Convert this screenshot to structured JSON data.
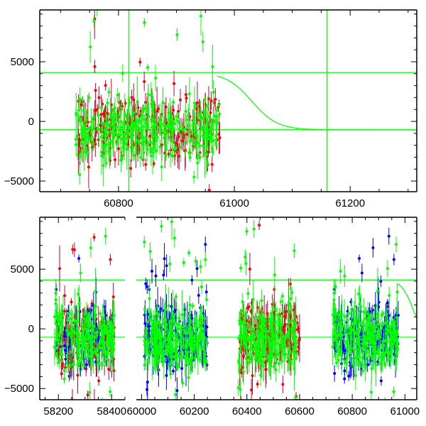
{
  "chart_data": [
    {
      "type": "scatter",
      "title": "",
      "xlabel": "",
      "ylabel": "",
      "xlim": [
        60664,
        61315
      ],
      "ylim": [
        -5893,
        9345
      ],
      "x_ticks": [
        60800,
        61000,
        61200
      ],
      "x_tick_labels": [
        "60800",
        "61000",
        "61200"
      ],
      "y_ticks": [
        -5000,
        0,
        5000
      ],
      "y_tick_labels": [
        "−5000",
        "0",
        "5000"
      ],
      "grid": false,
      "model": {
        "color": "#00ff00",
        "upper": 4100,
        "lower": -700,
        "center": 61030,
        "width": 22,
        "start": 60970
      },
      "vlines": [
        {
          "x": 60818,
          "color": "#00ff00"
        },
        {
          "x": 61160,
          "color": "#00ff00"
        }
      ],
      "clusters": [
        {
          "series": "red",
          "x": [
            60730,
            60975
          ],
          "n": 260
        },
        {
          "series": "green",
          "x": [
            60725,
            60975
          ],
          "n": 320
        }
      ]
    },
    {
      "type": "scatter",
      "title": "",
      "xlabel": "",
      "ylabel": "",
      "broken_x_axis": true,
      "segments": [
        {
          "xlim": [
            58130,
            58450
          ],
          "x_ticks": [
            58200,
            58400
          ],
          "x_tick_labels": [
            "58200",
            "58400"
          ]
        },
        {
          "xlim": [
            59980,
            61045
          ],
          "x_ticks": [
            60000,
            60200,
            60400,
            60600,
            60800,
            61000
          ],
          "x_tick_labels": [
            "60000",
            "60200",
            "60400",
            "60600",
            "60800",
            "61000"
          ]
        }
      ],
      "ylim": [
        -5940,
        9350
      ],
      "y_ticks": [
        -5000,
        0,
        5000
      ],
      "y_tick_labels": [
        "−5000",
        "0",
        "5000"
      ],
      "grid": false,
      "model": {
        "color": "#00ff00",
        "upper": 4100,
        "lower": -700,
        "center": 61030,
        "width": 22,
        "start": 60970
      },
      "clusters": [
        {
          "series": "red",
          "x": [
            58190,
            58410
          ],
          "n": 150
        },
        {
          "series": "blue",
          "x": [
            58190,
            58410
          ],
          "n": 90
        },
        {
          "series": "green",
          "x": [
            58185,
            58410
          ],
          "n": 200
        },
        {
          "series": "blue",
          "x": [
            60010,
            60250
          ],
          "n": 200
        },
        {
          "series": "green",
          "x": [
            60010,
            60250
          ],
          "n": 240
        },
        {
          "series": "red",
          "x": [
            60370,
            60600
          ],
          "n": 200
        },
        {
          "series": "green",
          "x": [
            60365,
            60590
          ],
          "n": 220
        },
        {
          "series": "blue",
          "x": [
            60730,
            60975
          ],
          "n": 200
        },
        {
          "series": "green",
          "x": [
            60725,
            60975
          ],
          "n": 240
        }
      ]
    }
  ],
  "colors": {
    "red": "#ff0000",
    "red_err": "#c8003c",
    "green": "#00ff00",
    "blue": "#0000ff",
    "axis": "#000000"
  }
}
